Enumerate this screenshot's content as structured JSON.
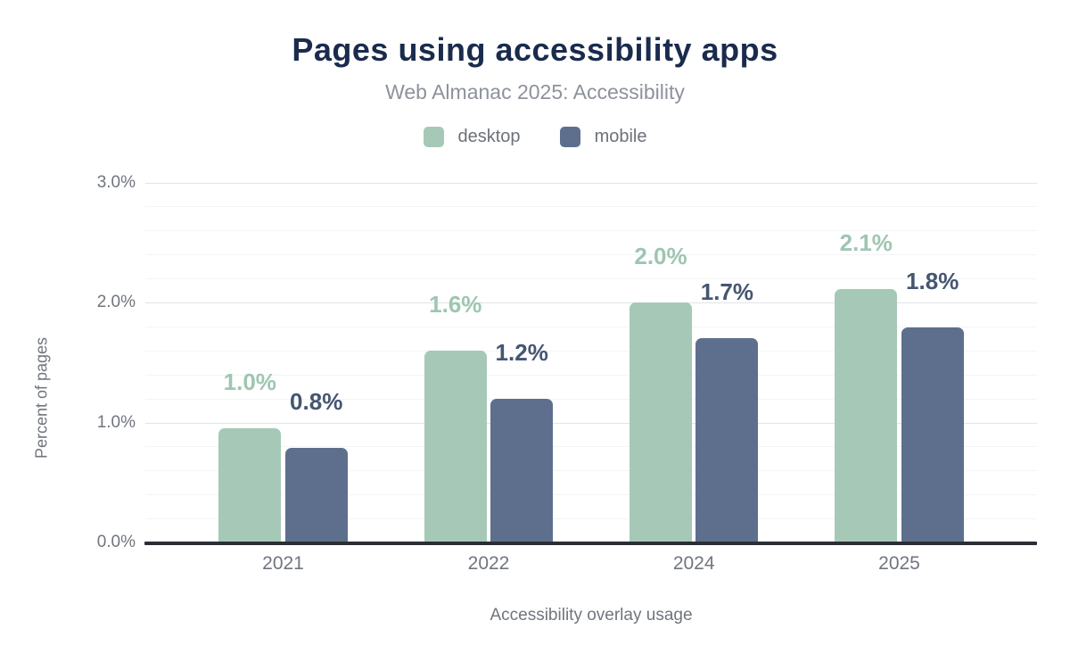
{
  "header": {
    "title": "Pages using accessibility apps",
    "subtitle": "Web Almanac 2025: Accessibility"
  },
  "chart_data": {
    "type": "bar",
    "title": "Pages using accessibility apps",
    "subtitle": "Web Almanac 2025: Accessibility",
    "categories": [
      "2021",
      "2022",
      "2024",
      "2025"
    ],
    "series": [
      {
        "name": "desktop",
        "color": "#a6c9b7",
        "label_color": "#9ec6b2",
        "values": [
          1.0,
          1.6,
          2.0,
          2.1
        ],
        "bar_values": [
          0.95,
          1.6,
          2.0,
          2.11
        ],
        "labels": [
          "1.0%",
          "1.6%",
          "2.0%",
          "2.1%"
        ]
      },
      {
        "name": "mobile",
        "color": "#5e6f8e",
        "label_color": "#455671",
        "values": [
          0.8,
          1.2,
          1.7,
          1.8
        ],
        "bar_values": [
          0.79,
          1.2,
          1.7,
          1.79
        ],
        "labels": [
          "0.8%",
          "1.2%",
          "1.7%",
          "1.8%"
        ]
      }
    ],
    "xlabel": "Accessibility overlay usage",
    "ylabel": "Percent of pages",
    "ylim": [
      0,
      3.0
    ],
    "yticks": [
      "0.0%",
      "1.0%",
      "2.0%",
      "3.0%"
    ],
    "ytick_values": [
      0,
      1,
      2,
      3
    ],
    "grid": {
      "minor_step": 0.2,
      "major_step": 1.0,
      "minor_color": "#f3f4f6",
      "major_color": "#e2e4e7"
    },
    "legend_position": "top",
    "axis_line_color": "#2b2e34",
    "title_color": "#1a2b4d",
    "subtitle_color": "#8d929b",
    "tick_text_color": "#70757e"
  }
}
